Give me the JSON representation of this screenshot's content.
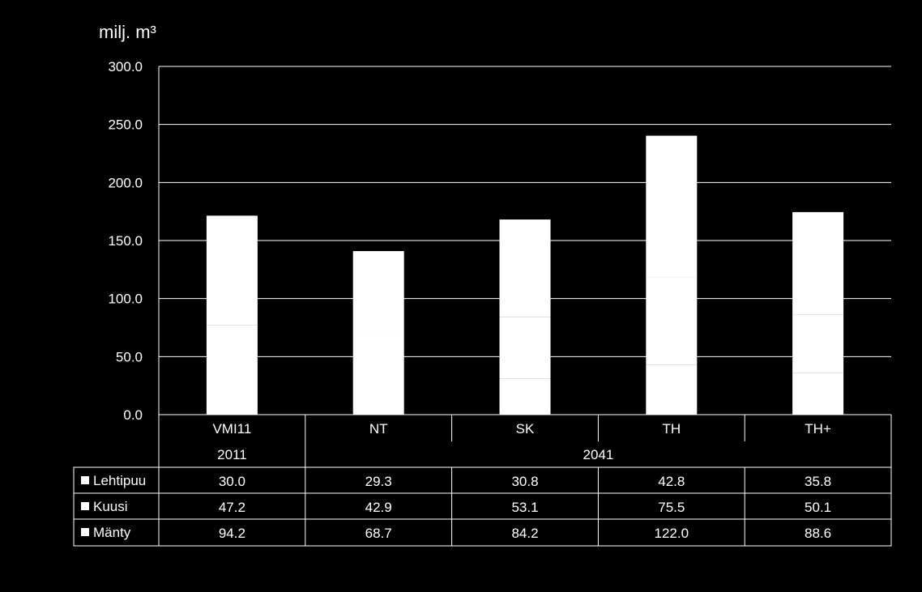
{
  "chart_data": {
    "type": "bar",
    "stacked": true,
    "ylabel": "milj. m³",
    "ylim": [
      0,
      300
    ],
    "yticks": [
      "0.0",
      "50.0",
      "100.0",
      "150.0",
      "200.0",
      "250.0",
      "300.0"
    ],
    "grid": true,
    "categories": [
      "VMI11",
      "NT",
      "SK",
      "TH",
      "TH+"
    ],
    "groups": [
      {
        "label": "2011",
        "categories": [
          "VMI11"
        ]
      },
      {
        "label": "2041",
        "categories": [
          "NT",
          "SK",
          "TH",
          "TH+"
        ]
      }
    ],
    "series": [
      {
        "name": "Lehtipuu",
        "values": [
          30.0,
          29.3,
          30.8,
          42.8,
          35.8
        ],
        "display": [
          "30.0",
          "29.3",
          "30.8",
          "42.8",
          "35.8"
        ]
      },
      {
        "name": "Kuusi",
        "values": [
          47.2,
          42.9,
          53.1,
          75.5,
          50.1
        ],
        "display": [
          "47.2",
          "42.9",
          "53.1",
          "75.5",
          "50.1"
        ]
      },
      {
        "name": "Mänty",
        "values": [
          94.2,
          68.7,
          84.2,
          122.0,
          88.6
        ],
        "display": [
          "94.2",
          "68.7",
          "84.2",
          "122.0",
          "88.6"
        ]
      }
    ],
    "series_color": "#ffffff",
    "data_table": true
  }
}
